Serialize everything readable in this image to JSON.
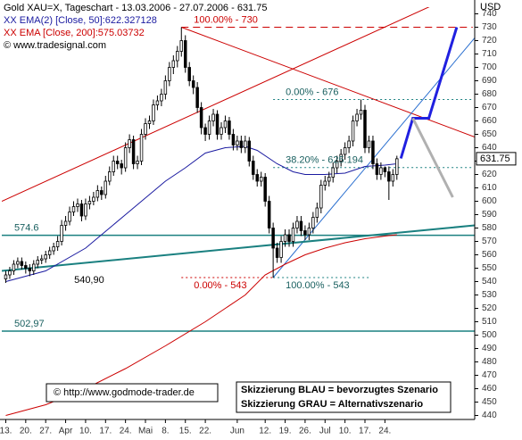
{
  "chart_data": {
    "type": "candlestick",
    "title": "Gold XAU=X, Tageschart - 13.03.2006 - 27.07.2006 - 631.75",
    "source": "© www.tradesignal.com",
    "y_label": "USD",
    "footer_link": "© http://www.godmode-trader.de",
    "scenario_notes": [
      "Skizzierung BLAU = bevorzugtes Szenario",
      "Skizzierung GRAU = Alternativszenario"
    ],
    "candle_color": "#000000",
    "xlim": [
      -1,
      117.5
    ],
    "ylim": [
      437,
      745
    ],
    "xticks": [
      {
        "value": 0,
        "label": "13."
      },
      {
        "value": 5,
        "label": "20."
      },
      {
        "value": 10,
        "label": "27."
      },
      {
        "value": 15,
        "label": "Apr"
      },
      {
        "value": 20,
        "label": "10."
      },
      {
        "value": 25,
        "label": "17."
      },
      {
        "value": 30,
        "label": "24."
      },
      {
        "value": 35,
        "label": "Mai"
      },
      {
        "value": 40,
        "label": "8."
      },
      {
        "value": 45,
        "label": "15."
      },
      {
        "value": 50,
        "label": "22."
      },
      {
        "value": 58,
        "label": "Jun"
      },
      {
        "value": 65,
        "label": "12."
      },
      {
        "value": 70,
        "label": "19."
      },
      {
        "value": 75,
        "label": "26."
      },
      {
        "value": 80,
        "label": "Jul"
      },
      {
        "value": 85,
        "label": "10."
      },
      {
        "value": 90,
        "label": "17."
      },
      {
        "value": 95,
        "label": "24."
      }
    ],
    "yticks": [
      440,
      450,
      460,
      470,
      480,
      490,
      500,
      510,
      520,
      530,
      540,
      550,
      560,
      570,
      580,
      590,
      600,
      610,
      620,
      630,
      640,
      650,
      660,
      670,
      680,
      690,
      700,
      710,
      720,
      730,
      740
    ],
    "ohlc": [
      [
        542,
        548,
        539,
        545
      ],
      [
        545,
        551,
        542,
        548
      ],
      [
        548,
        556,
        545,
        553
      ],
      [
        553,
        558,
        550,
        555
      ],
      [
        555,
        558,
        549,
        552
      ],
      [
        552,
        555,
        546,
        550
      ],
      [
        550,
        553,
        544,
        548
      ],
      [
        548,
        556,
        545,
        553
      ],
      [
        553,
        559,
        550,
        556
      ],
      [
        556,
        560,
        553,
        557
      ],
      [
        557,
        563,
        554,
        560
      ],
      [
        560,
        566,
        557,
        563
      ],
      [
        563,
        569,
        560,
        566
      ],
      [
        566,
        574,
        563,
        570
      ],
      [
        570,
        586,
        567,
        582
      ],
      [
        582,
        589,
        578,
        585
      ],
      [
        585,
        596,
        582,
        592
      ],
      [
        592,
        600,
        589,
        596
      ],
      [
        596,
        602,
        592,
        598
      ],
      [
        598,
        601,
        585,
        589
      ],
      [
        589,
        602,
        586,
        598
      ],
      [
        598,
        604,
        594,
        600
      ],
      [
        600,
        607,
        597,
        603
      ],
      [
        603,
        612,
        600,
        608
      ],
      [
        608,
        611,
        601,
        605
      ],
      [
        605,
        619,
        602,
        615
      ],
      [
        615,
        626,
        612,
        622
      ],
      [
        622,
        634,
        619,
        630
      ],
      [
        630,
        634,
        624,
        628
      ],
      [
        628,
        631,
        620,
        625
      ],
      [
        625,
        644,
        622,
        640
      ],
      [
        640,
        650,
        636,
        646
      ],
      [
        646,
        649,
        624,
        628
      ],
      [
        628,
        634,
        624,
        630
      ],
      [
        630,
        654,
        627,
        650
      ],
      [
        650,
        662,
        646,
        658
      ],
      [
        658,
        664,
        654,
        660
      ],
      [
        660,
        676,
        657,
        672
      ],
      [
        672,
        679,
        668,
        675
      ],
      [
        675,
        684,
        671,
        680
      ],
      [
        680,
        694,
        676,
        690
      ],
      [
        690,
        704,
        686,
        700
      ],
      [
        700,
        709,
        695,
        705
      ],
      [
        705,
        716,
        700,
        712
      ],
      [
        712,
        730,
        708,
        720
      ],
      [
        720,
        724,
        696,
        700
      ],
      [
        700,
        704,
        686,
        690
      ],
      [
        690,
        694,
        680,
        685
      ],
      [
        685,
        689,
        666,
        670
      ],
      [
        670,
        674,
        650,
        655
      ],
      [
        655,
        658,
        645,
        650
      ],
      [
        650,
        664,
        646,
        660
      ],
      [
        660,
        669,
        656,
        665
      ],
      [
        665,
        668,
        646,
        650
      ],
      [
        650,
        659,
        646,
        655
      ],
      [
        655,
        664,
        651,
        660
      ],
      [
        660,
        663,
        646,
        650
      ],
      [
        650,
        654,
        638,
        642
      ],
      [
        642,
        649,
        638,
        645
      ],
      [
        645,
        649,
        636,
        640
      ],
      [
        640,
        649,
        636,
        645
      ],
      [
        645,
        648,
        626,
        630
      ],
      [
        630,
        634,
        616,
        620
      ],
      [
        620,
        624,
        611,
        615
      ],
      [
        615,
        622,
        611,
        618
      ],
      [
        618,
        621,
        596,
        600
      ],
      [
        600,
        604,
        576,
        580
      ],
      [
        580,
        584,
        543,
        565
      ],
      [
        565,
        569,
        554,
        558
      ],
      [
        558,
        574,
        554,
        570
      ],
      [
        570,
        579,
        566,
        575
      ],
      [
        575,
        579,
        566,
        570
      ],
      [
        570,
        584,
        566,
        580
      ],
      [
        580,
        589,
        576,
        585
      ],
      [
        585,
        589,
        574,
        578
      ],
      [
        578,
        582,
        571,
        575
      ],
      [
        575,
        584,
        571,
        580
      ],
      [
        580,
        592,
        576,
        588
      ],
      [
        588,
        599,
        584,
        595
      ],
      [
        595,
        616,
        591,
        612
      ],
      [
        612,
        619,
        608,
        615
      ],
      [
        615,
        622,
        611,
        618
      ],
      [
        618,
        629,
        614,
        625
      ],
      [
        625,
        634,
        621,
        630
      ],
      [
        630,
        639,
        626,
        635
      ],
      [
        635,
        644,
        631,
        640
      ],
      [
        640,
        649,
        636,
        645
      ],
      [
        645,
        664,
        641,
        660
      ],
      [
        660,
        669,
        656,
        665
      ],
      [
        665,
        676,
        661,
        668
      ],
      [
        668,
        672,
        636,
        640
      ],
      [
        640,
        649,
        636,
        645
      ],
      [
        645,
        649,
        624,
        628
      ],
      [
        628,
        632,
        616,
        620
      ],
      [
        620,
        629,
        616,
        625
      ],
      [
        625,
        626,
        618,
        622
      ],
      [
        622,
        626,
        601,
        615
      ],
      [
        615,
        624,
        611,
        620
      ],
      [
        620,
        634,
        616,
        631.75
      ]
    ],
    "series": [
      {
        "name": "XX EMA(2) [Close, 50]:622.327128",
        "color": "#1a1aa0",
        "x": [
          0,
          10,
          20,
          30,
          40,
          45,
          50,
          55,
          60,
          63,
          68,
          72,
          75,
          80,
          85,
          90,
          95,
          98
        ],
        "values": [
          540,
          548,
          565,
          590,
          615,
          625,
          636,
          640,
          641,
          638,
          628,
          622,
          620,
          620,
          621,
          626,
          627,
          628
        ]
      },
      {
        "name": "XX EMA [Close, 200]:575.03732",
        "color": "#cc0000",
        "x": [
          0,
          10,
          20,
          30,
          40,
          50,
          60,
          65,
          70,
          75,
          80,
          85,
          90,
          95,
          98
        ],
        "values": [
          440,
          448,
          460,
          475,
          492,
          510,
          530,
          545,
          553,
          560,
          565,
          569,
          572,
          574,
          575
        ]
      }
    ],
    "levels": [
      {
        "label": "100.00% - 730",
        "value": 730,
        "from": 44,
        "to": 117,
        "color": "#cc0000",
        "dash": "8 5"
      },
      {
        "label": "0.00% - 676",
        "value": 676,
        "from": 67,
        "to": 117,
        "color": "#1a8080",
        "dash": "2 3"
      },
      {
        "label": "38.20% - 625.194",
        "value": 625.194,
        "from": 67,
        "to": 117,
        "color": "#1a8080",
        "dash": "2 3"
      },
      {
        "label": "0.00% - 543",
        "value": 543,
        "from": 44,
        "to": 67,
        "color": "#cc0000",
        "dash": "2 3"
      },
      {
        "label": "100.00% - 543",
        "value": 543,
        "from": 67,
        "to": 91,
        "color": "#1a8080",
        "dash": "2 3"
      },
      {
        "label": "574.6",
        "value": 574.6,
        "from": -1,
        "to": 117.5,
        "color": "#1a8080",
        "dash": "none"
      },
      {
        "label": "502,97",
        "value": 502.97,
        "from": -1,
        "to": 117.5,
        "color": "#1a8080",
        "dash": "none"
      },
      {
        "label": "540,90",
        "value": 540.9,
        "from": 14,
        "to": 14,
        "color": "#000000",
        "dash": "none"
      }
    ],
    "trendlines": [
      {
        "color": "#cc0000",
        "width": 1,
        "points": [
          [
            -1,
            600
          ],
          [
            117,
            760
          ]
        ]
      },
      {
        "color": "#cc0000",
        "width": 1,
        "points": [
          [
            44,
            730
          ],
          [
            117.5,
            648
          ]
        ]
      },
      {
        "color": "#2a6fd0",
        "width": 1,
        "points": [
          [
            67,
            543
          ],
          [
            117.5,
            722
          ]
        ]
      },
      {
        "color": "#1a8080",
        "width": 2,
        "points": [
          [
            -1,
            548
          ],
          [
            117.5,
            582
          ]
        ]
      },
      {
        "color": "#2020e0",
        "width": 3,
        "points": [
          [
            99,
            632
          ],
          [
            102,
            662
          ],
          [
            106,
            662
          ],
          [
            113,
            730
          ]
        ]
      },
      {
        "color": "#b0b0b0",
        "width": 3,
        "points": [
          [
            102,
            662
          ],
          [
            112,
            603
          ]
        ]
      }
    ]
  }
}
